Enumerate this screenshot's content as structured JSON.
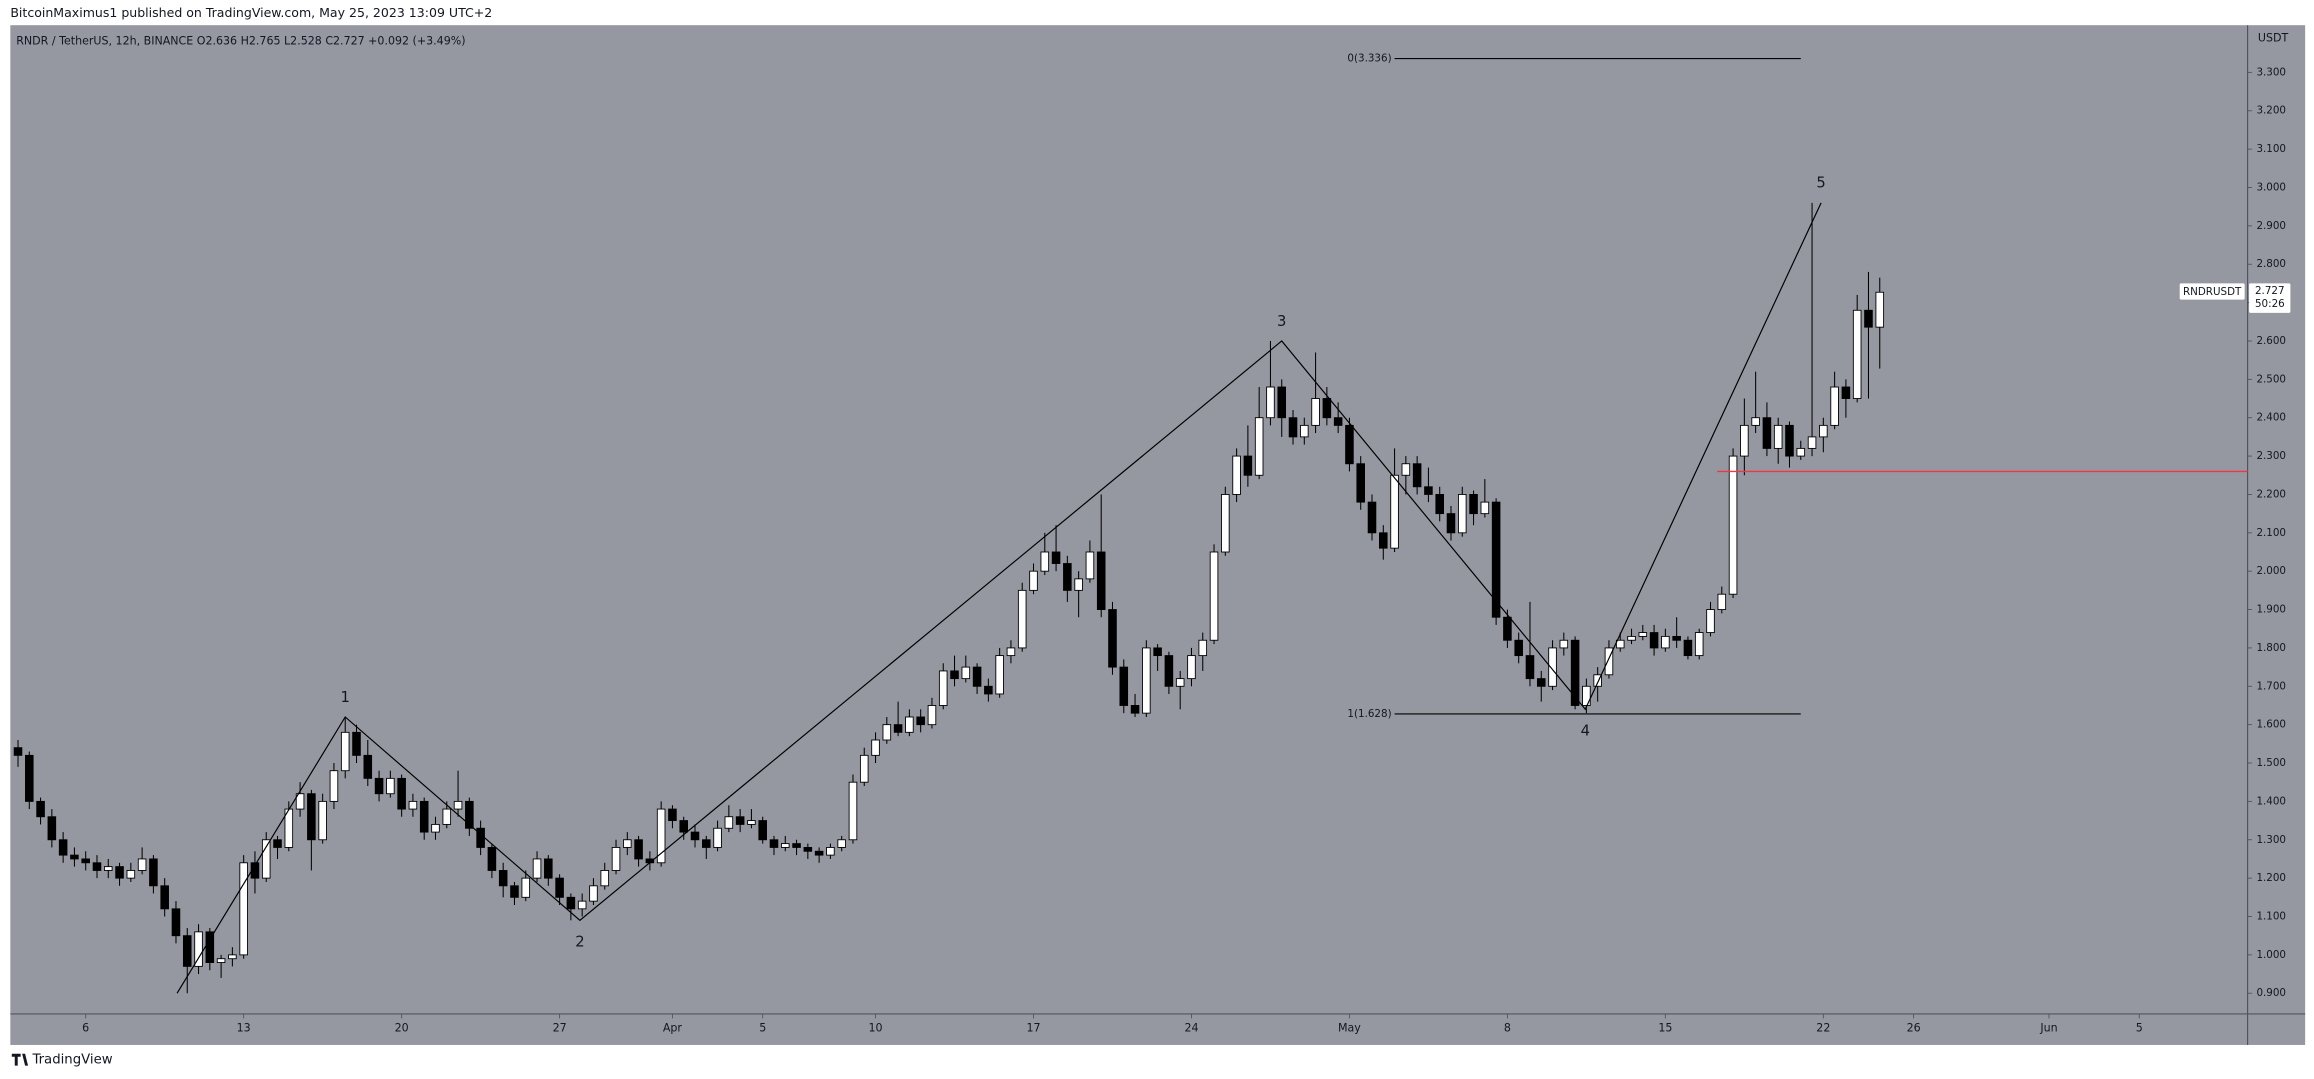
{
  "chart_data": {
    "type": "candlestick",
    "header": "BitcoinMaximus1 published on TradingView.com, May 25, 2023 13:09 UTC+2",
    "legend": "RNDR / TetherUS, 12h, BINANCE  O2.636  H2.765  L2.528  C2.727  +0.092 (+3.49%)",
    "currency": "USDT",
    "footer": "TradingView",
    "up_color": "#ffffff",
    "down_color": "#000000",
    "candles": [
      [
        2,
        1.54,
        1.56,
        1.49,
        1.52
      ],
      [
        2.5,
        1.52,
        1.53,
        1.38,
        1.4
      ],
      [
        3,
        1.4,
        1.41,
        1.34,
        1.36
      ],
      [
        3.5,
        1.36,
        1.38,
        1.28,
        1.3
      ],
      [
        4,
        1.3,
        1.32,
        1.24,
        1.26
      ],
      [
        4.5,
        1.26,
        1.28,
        1.23,
        1.25
      ],
      [
        5,
        1.25,
        1.27,
        1.22,
        1.24
      ],
      [
        5.5,
        1.24,
        1.26,
        1.2,
        1.22
      ],
      [
        6,
        1.22,
        1.25,
        1.2,
        1.23
      ],
      [
        6.5,
        1.23,
        1.24,
        1.18,
        1.2
      ],
      [
        7,
        1.2,
        1.24,
        1.19,
        1.22
      ],
      [
        7.5,
        1.22,
        1.28,
        1.21,
        1.25
      ],
      [
        8,
        1.25,
        1.26,
        1.16,
        1.18
      ],
      [
        8.5,
        1.18,
        1.2,
        1.1,
        1.12
      ],
      [
        9,
        1.12,
        1.14,
        1.03,
        1.05
      ],
      [
        9.5,
        1.05,
        1.07,
        0.9,
        0.97
      ],
      [
        10,
        0.97,
        1.08,
        0.95,
        1.06
      ],
      [
        10.5,
        1.06,
        1.07,
        0.96,
        0.98
      ],
      [
        11,
        0.98,
        1.0,
        0.94,
        0.99
      ],
      [
        11.5,
        0.99,
        1.02,
        0.97,
        1.0
      ],
      [
        12,
        1.0,
        1.26,
        0.99,
        1.24
      ],
      [
        12.5,
        1.24,
        1.27,
        1.16,
        1.2
      ],
      [
        13,
        1.2,
        1.32,
        1.19,
        1.3
      ],
      [
        13.5,
        1.3,
        1.31,
        1.25,
        1.28
      ],
      [
        14,
        1.28,
        1.4,
        1.27,
        1.38
      ],
      [
        14.5,
        1.38,
        1.45,
        1.36,
        1.42
      ],
      [
        15,
        1.42,
        1.43,
        1.22,
        1.3
      ],
      [
        15.5,
        1.3,
        1.42,
        1.29,
        1.4
      ],
      [
        16,
        1.4,
        1.5,
        1.38,
        1.48
      ],
      [
        16.5,
        1.48,
        1.62,
        1.46,
        1.58
      ],
      [
        17,
        1.58,
        1.6,
        1.5,
        1.52
      ],
      [
        17.5,
        1.52,
        1.56,
        1.44,
        1.46
      ],
      [
        18,
        1.46,
        1.48,
        1.4,
        1.42
      ],
      [
        18.5,
        1.42,
        1.48,
        1.41,
        1.46
      ],
      [
        19,
        1.46,
        1.47,
        1.36,
        1.38
      ],
      [
        19.5,
        1.38,
        1.42,
        1.36,
        1.4
      ],
      [
        20,
        1.4,
        1.41,
        1.3,
        1.32
      ],
      [
        20.5,
        1.32,
        1.36,
        1.3,
        1.34
      ],
      [
        21,
        1.34,
        1.4,
        1.33,
        1.38
      ],
      [
        21.5,
        1.38,
        1.48,
        1.36,
        1.4
      ],
      [
        22,
        1.4,
        1.41,
        1.31,
        1.33
      ],
      [
        22.5,
        1.33,
        1.35,
        1.26,
        1.28
      ],
      [
        23,
        1.28,
        1.29,
        1.2,
        1.22
      ],
      [
        23.5,
        1.22,
        1.24,
        1.15,
        1.18
      ],
      [
        24,
        1.18,
        1.19,
        1.13,
        1.15
      ],
      [
        24.5,
        1.15,
        1.22,
        1.14,
        1.2
      ],
      [
        25,
        1.2,
        1.27,
        1.19,
        1.25
      ],
      [
        25.5,
        1.25,
        1.26,
        1.18,
        1.2
      ],
      [
        26,
        1.2,
        1.21,
        1.13,
        1.15
      ],
      [
        26.5,
        1.15,
        1.16,
        1.09,
        1.12
      ],
      [
        27,
        1.12,
        1.16,
        1.1,
        1.14
      ],
      [
        27.5,
        1.14,
        1.2,
        1.13,
        1.18
      ],
      [
        28,
        1.18,
        1.24,
        1.17,
        1.22
      ],
      [
        28.5,
        1.22,
        1.3,
        1.21,
        1.28
      ],
      [
        29,
        1.28,
        1.32,
        1.26,
        1.3
      ],
      [
        29.5,
        1.3,
        1.31,
        1.23,
        1.25
      ],
      [
        30,
        1.25,
        1.27,
        1.22,
        1.24
      ],
      [
        30.5,
        1.24,
        1.4,
        1.23,
        1.38
      ],
      [
        31,
        1.38,
        1.39,
        1.33,
        1.35
      ],
      [
        31.5,
        1.35,
        1.36,
        1.3,
        1.32
      ],
      [
        32,
        1.32,
        1.34,
        1.28,
        1.3
      ],
      [
        32.5,
        1.3,
        1.31,
        1.25,
        1.28
      ],
      [
        33,
        1.28,
        1.35,
        1.27,
        1.33
      ],
      [
        33.5,
        1.33,
        1.39,
        1.32,
        1.36
      ],
      [
        34,
        1.36,
        1.38,
        1.32,
        1.34
      ],
      [
        34.5,
        1.34,
        1.38,
        1.33,
        1.35
      ],
      [
        35,
        1.35,
        1.36,
        1.29,
        1.3
      ],
      [
        35.5,
        1.3,
        1.31,
        1.26,
        1.28
      ],
      [
        36,
        1.28,
        1.31,
        1.27,
        1.29
      ],
      [
        36.5,
        1.29,
        1.3,
        1.26,
        1.28
      ],
      [
        37,
        1.28,
        1.29,
        1.25,
        1.27
      ],
      [
        37.5,
        1.27,
        1.28,
        1.24,
        1.26
      ],
      [
        38,
        1.26,
        1.29,
        1.25,
        1.28
      ],
      [
        38.5,
        1.28,
        1.31,
        1.27,
        1.3
      ],
      [
        39,
        1.3,
        1.47,
        1.29,
        1.45
      ],
      [
        39.5,
        1.45,
        1.54,
        1.44,
        1.52
      ],
      [
        40,
        1.52,
        1.58,
        1.5,
        1.56
      ],
      [
        40.5,
        1.56,
        1.62,
        1.55,
        1.6
      ],
      [
        41,
        1.6,
        1.66,
        1.57,
        1.58
      ],
      [
        41.5,
        1.58,
        1.64,
        1.57,
        1.62
      ],
      [
        42,
        1.62,
        1.64,
        1.58,
        1.6
      ],
      [
        42.5,
        1.6,
        1.67,
        1.59,
        1.65
      ],
      [
        43,
        1.65,
        1.76,
        1.64,
        1.74
      ],
      [
        43.5,
        1.74,
        1.78,
        1.7,
        1.72
      ],
      [
        44,
        1.72,
        1.78,
        1.71,
        1.75
      ],
      [
        44.5,
        1.75,
        1.76,
        1.68,
        1.7
      ],
      [
        45,
        1.7,
        1.72,
        1.66,
        1.68
      ],
      [
        45.5,
        1.68,
        1.8,
        1.67,
        1.78
      ],
      [
        46,
        1.78,
        1.82,
        1.76,
        1.8
      ],
      [
        46.5,
        1.8,
        1.97,
        1.79,
        1.95
      ],
      [
        47,
        1.95,
        2.02,
        1.94,
        2.0
      ],
      [
        47.5,
        2.0,
        2.1,
        1.99,
        2.05
      ],
      [
        48,
        2.05,
        2.12,
        2.0,
        2.02
      ],
      [
        48.5,
        2.02,
        2.04,
        1.92,
        1.95
      ],
      [
        49,
        1.95,
        2.0,
        1.88,
        1.98
      ],
      [
        49.5,
        1.98,
        2.08,
        1.97,
        2.05
      ],
      [
        50,
        2.05,
        2.2,
        1.88,
        1.9
      ],
      [
        50.5,
        1.9,
        1.92,
        1.73,
        1.75
      ],
      [
        51,
        1.75,
        1.77,
        1.63,
        1.65
      ],
      [
        51.5,
        1.65,
        1.68,
        1.62,
        1.63
      ],
      [
        52,
        1.63,
        1.82,
        1.62,
        1.8
      ],
      [
        52.5,
        1.8,
        1.81,
        1.74,
        1.78
      ],
      [
        53,
        1.78,
        1.79,
        1.68,
        1.7
      ],
      [
        53.5,
        1.7,
        1.74,
        1.64,
        1.72
      ],
      [
        54,
        1.72,
        1.8,
        1.7,
        1.78
      ],
      [
        54.5,
        1.78,
        1.84,
        1.74,
        1.82
      ],
      [
        55,
        1.82,
        2.07,
        1.81,
        2.05
      ],
      [
        55.5,
        2.05,
        2.22,
        2.04,
        2.2
      ],
      [
        56,
        2.2,
        2.32,
        2.18,
        2.3
      ],
      [
        56.5,
        2.3,
        2.38,
        2.22,
        2.25
      ],
      [
        57,
        2.25,
        2.48,
        2.24,
        2.4
      ],
      [
        57.5,
        2.4,
        2.6,
        2.38,
        2.48
      ],
      [
        58,
        2.48,
        2.5,
        2.35,
        2.4
      ],
      [
        58.5,
        2.4,
        2.42,
        2.33,
        2.35
      ],
      [
        59,
        2.35,
        2.4,
        2.33,
        2.38
      ],
      [
        59.5,
        2.38,
        2.57,
        2.36,
        2.45
      ],
      [
        60,
        2.45,
        2.48,
        2.38,
        2.4
      ],
      [
        60.5,
        2.4,
        2.44,
        2.36,
        2.38
      ],
      [
        61,
        2.38,
        2.4,
        2.26,
        2.28
      ],
      [
        61.5,
        2.28,
        2.3,
        2.16,
        2.18
      ],
      [
        62,
        2.18,
        2.2,
        2.08,
        2.1
      ],
      [
        62.5,
        2.1,
        2.12,
        2.03,
        2.06
      ],
      [
        63,
        2.06,
        2.32,
        2.05,
        2.25
      ],
      [
        63.5,
        2.25,
        2.3,
        2.2,
        2.28
      ],
      [
        64,
        2.28,
        2.3,
        2.2,
        2.22
      ],
      [
        64.5,
        2.22,
        2.27,
        2.18,
        2.2
      ],
      [
        65,
        2.2,
        2.22,
        2.13,
        2.15
      ],
      [
        65.5,
        2.15,
        2.17,
        2.08,
        2.1
      ],
      [
        66,
        2.1,
        2.22,
        2.09,
        2.2
      ],
      [
        66.5,
        2.2,
        2.21,
        2.12,
        2.15
      ],
      [
        67,
        2.15,
        2.24,
        2.14,
        2.18
      ],
      [
        67.5,
        2.18,
        2.19,
        1.86,
        1.88
      ],
      [
        68,
        1.88,
        1.9,
        1.8,
        1.82
      ],
      [
        68.5,
        1.82,
        1.84,
        1.76,
        1.78
      ],
      [
        69,
        1.78,
        1.92,
        1.7,
        1.72
      ],
      [
        69.5,
        1.72,
        1.74,
        1.66,
        1.7
      ],
      [
        70,
        1.7,
        1.82,
        1.69,
        1.8
      ],
      [
        70.5,
        1.8,
        1.84,
        1.78,
        1.82
      ],
      [
        71,
        1.82,
        1.83,
        1.64,
        1.65
      ],
      [
        71.5,
        1.65,
        1.72,
        1.63,
        1.7
      ],
      [
        72,
        1.7,
        1.75,
        1.66,
        1.73
      ],
      [
        72.5,
        1.73,
        1.82,
        1.72,
        1.8
      ],
      [
        73,
        1.8,
        1.84,
        1.79,
        1.82
      ],
      [
        73.5,
        1.82,
        1.85,
        1.81,
        1.83
      ],
      [
        74,
        1.83,
        1.86,
        1.82,
        1.84
      ],
      [
        74.5,
        1.84,
        1.86,
        1.78,
        1.8
      ],
      [
        75,
        1.8,
        1.85,
        1.79,
        1.83
      ],
      [
        75.5,
        1.83,
        1.88,
        1.8,
        1.82
      ],
      [
        76,
        1.82,
        1.83,
        1.77,
        1.78
      ],
      [
        76.5,
        1.78,
        1.85,
        1.77,
        1.84
      ],
      [
        77,
        1.84,
        1.92,
        1.83,
        1.9
      ],
      [
        77.5,
        1.9,
        1.96,
        1.89,
        1.94
      ],
      [
        78,
        1.94,
        2.32,
        1.93,
        2.3
      ],
      [
        78.5,
        2.3,
        2.45,
        2.25,
        2.38
      ],
      [
        79,
        2.38,
        2.52,
        2.36,
        2.4
      ],
      [
        79.5,
        2.4,
        2.44,
        2.3,
        2.32
      ],
      [
        80,
        2.32,
        2.4,
        2.28,
        2.38
      ],
      [
        80.5,
        2.38,
        2.39,
        2.27,
        2.3
      ],
      [
        81,
        2.3,
        2.34,
        2.29,
        2.32
      ],
      [
        81.5,
        2.32,
        2.96,
        2.3,
        2.35
      ],
      [
        82,
        2.35,
        2.4,
        2.31,
        2.38
      ],
      [
        82.5,
        2.38,
        2.52,
        2.37,
        2.48
      ],
      [
        83,
        2.48,
        2.5,
        2.4,
        2.45
      ],
      [
        83.5,
        2.45,
        2.72,
        2.44,
        2.68
      ],
      [
        84,
        2.68,
        2.78,
        2.45,
        2.636
      ],
      [
        84.5,
        2.636,
        2.765,
        2.528,
        2.727
      ]
    ],
    "xlim": [
      1.66,
      100.8
    ],
    "ylim": [
      0.846,
      3.423
    ],
    "xticks": [
      {
        "value": 5,
        "label": "6"
      },
      {
        "value": 12,
        "label": "13"
      },
      {
        "value": 19,
        "label": "20"
      },
      {
        "value": 26,
        "label": "27"
      },
      {
        "value": 31,
        "label": "Apr"
      },
      {
        "value": 35,
        "label": "5"
      },
      {
        "value": 40,
        "label": "10"
      },
      {
        "value": 47,
        "label": "17"
      },
      {
        "value": 54,
        "label": "24"
      },
      {
        "value": 61,
        "label": "May"
      },
      {
        "value": 68,
        "label": "8"
      },
      {
        "value": 75,
        "label": "15"
      },
      {
        "value": 82,
        "label": "22"
      },
      {
        "value": 86,
        "label": "26"
      },
      {
        "value": 92,
        "label": "Jun"
      },
      {
        "value": 96,
        "label": "5"
      }
    ],
    "yticks": [
      {
        "value": 0.9,
        "label": "0.900"
      },
      {
        "value": 1.0,
        "label": "1.000"
      },
      {
        "value": 1.1,
        "label": "1.100"
      },
      {
        "value": 1.2,
        "label": "1.200"
      },
      {
        "value": 1.3,
        "label": "1.300"
      },
      {
        "value": 1.4,
        "label": "1.400"
      },
      {
        "value": 1.5,
        "label": "1.500"
      },
      {
        "value": 1.6,
        "label": "1.600"
      },
      {
        "value": 1.7,
        "label": "1.700"
      },
      {
        "value": 1.8,
        "label": "1.800"
      },
      {
        "value": 1.9,
        "label": "1.900"
      },
      {
        "value": 2.0,
        "label": "2.000"
      },
      {
        "value": 2.1,
        "label": "2.100"
      },
      {
        "value": 2.2,
        "label": "2.200"
      },
      {
        "value": 2.3,
        "label": "2.300"
      },
      {
        "value": 2.4,
        "label": "2.400"
      },
      {
        "value": 2.5,
        "label": "2.500"
      },
      {
        "value": 2.6,
        "label": "2.600"
      },
      {
        "value": 2.7,
        "label": "2.700"
      },
      {
        "value": 2.8,
        "label": "2.800"
      },
      {
        "value": 2.9,
        "label": "2.900"
      },
      {
        "value": 3.0,
        "label": "3.000"
      },
      {
        "value": 3.1,
        "label": "3.100"
      },
      {
        "value": 3.2,
        "label": "3.200"
      },
      {
        "value": 3.3,
        "label": "3.300"
      }
    ],
    "grid": false,
    "wave": {
      "points": [
        [
          9.05,
          0.9
        ],
        [
          16.5,
          1.62
        ],
        [
          26.9,
          1.09
        ],
        [
          58.0,
          2.6
        ],
        [
          71.45,
          1.64
        ],
        [
          81.9,
          2.96
        ]
      ],
      "labels": [
        "1",
        "2",
        "3",
        "4",
        "5"
      ]
    },
    "fib_levels": [
      {
        "label": "0(3.336)",
        "value": 3.336,
        "x": [
          63.0,
          81.0
        ]
      },
      {
        "label": "1(1.628)",
        "value": 1.628,
        "x": [
          63.0,
          81.0
        ]
      }
    ],
    "support_line": {
      "value": 2.26,
      "x": [
        77.3,
        100.8
      ],
      "color": "#f23645"
    },
    "price_tag": {
      "symbol": "RNDRUSDT",
      "value": 2.727,
      "label": "2.727",
      "countdown": "50:26"
    }
  }
}
